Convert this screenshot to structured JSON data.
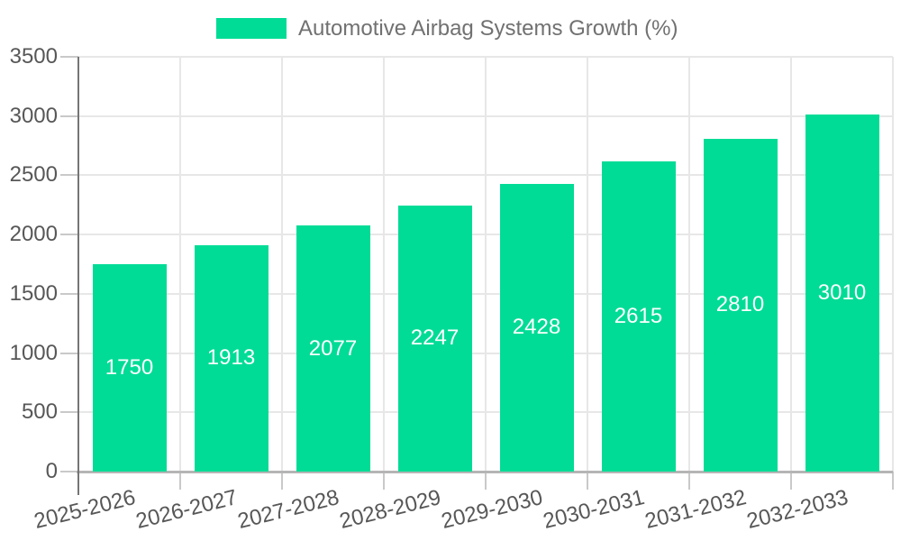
{
  "chart_data": {
    "type": "bar",
    "title": "Automotive Airbag Systems Growth (%)",
    "categories": [
      "2025-2026",
      "2026-2027",
      "2027-2028",
      "2028-2029",
      "2029-2030",
      "2030-2031",
      "2031-2032",
      "2032-2033"
    ],
    "values": [
      1750,
      1913,
      2077,
      2247,
      2428,
      2615,
      2810,
      3010
    ],
    "series": [
      {
        "name": "Automotive Airbag Systems Growth (%)",
        "values": [
          1750,
          1913,
          2077,
          2247,
          2428,
          2615,
          2810,
          3010
        ]
      }
    ],
    "xlabel": "",
    "ylabel": "",
    "ylim": [
      0,
      3500
    ],
    "ytick_step": 500,
    "yticks": [
      "0",
      "500",
      "1000",
      "1500",
      "2000",
      "2500",
      "3000",
      "3500"
    ],
    "grid": "on",
    "legend_position": "top",
    "value_labels_shown": true,
    "x_label_rotation_deg": -14
  },
  "colors": {
    "bar": "#00DC96",
    "background": "#ffffff",
    "grid": "#e7e7e7",
    "axis_line": "#757575",
    "baseline": "#b5b5b5",
    "tick": "#c9c9c9",
    "axis_text": "#575757",
    "legend_text": "#717171",
    "value_label": "#ffffff"
  }
}
